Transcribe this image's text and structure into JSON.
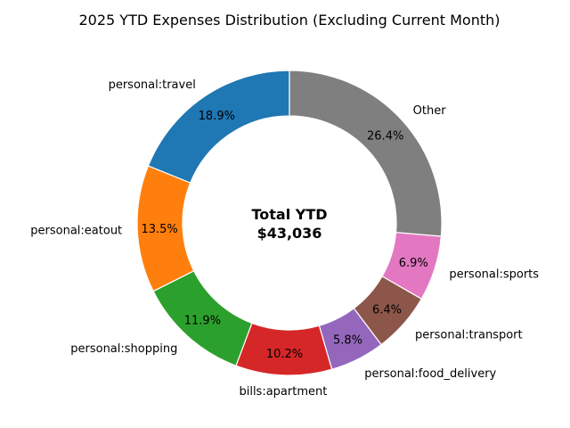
{
  "chart_data": {
    "type": "pie",
    "style": "donut",
    "title": "2025 YTD Expenses Distribution (Excluding Current Month)",
    "center_label": [
      "Total YTD",
      "$43,036"
    ],
    "total": 43036,
    "start_angle_deg": 90,
    "direction": "counterclockwise",
    "slices": [
      {
        "label": "personal:travel",
        "value": 18.9,
        "pct_label": "18.9%",
        "color": "#1f77b4"
      },
      {
        "label": "personal:eatout",
        "value": 13.5,
        "pct_label": "13.5%",
        "color": "#ff7f0e"
      },
      {
        "label": "personal:shopping",
        "value": 11.9,
        "pct_label": "11.9%",
        "color": "#2ca02c"
      },
      {
        "label": "bills:apartment",
        "value": 10.2,
        "pct_label": "10.2%",
        "color": "#d62728"
      },
      {
        "label": "personal:food_delivery",
        "value": 5.8,
        "pct_label": "5.8%",
        "color": "#9467bd"
      },
      {
        "label": "personal:transport",
        "value": 6.4,
        "pct_label": "6.4%",
        "color": "#8c564b"
      },
      {
        "label": "personal:sports",
        "value": 6.9,
        "pct_label": "6.9%",
        "color": "#e377c2"
      },
      {
        "label": "Other",
        "value": 26.4,
        "pct_label": "26.4%",
        "color": "#7f7f7f"
      }
    ]
  }
}
